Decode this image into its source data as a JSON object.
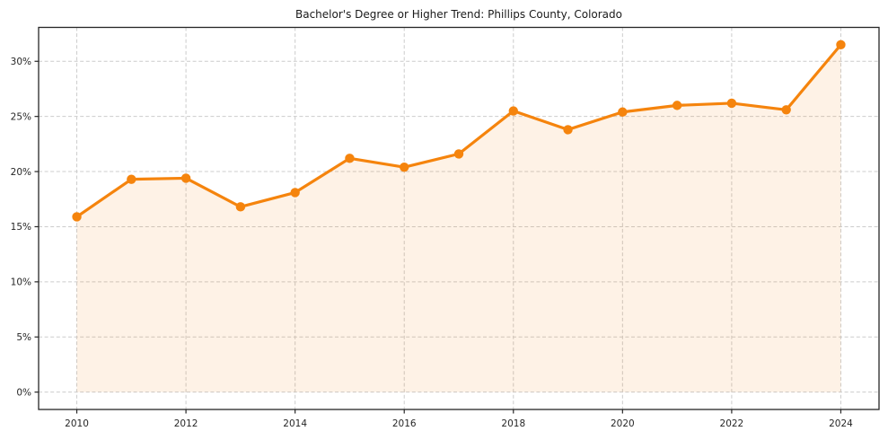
{
  "figure": {
    "title": "Bachelor's Degree or Higher Trend: Phillips County, Colorado"
  },
  "chart_data": {
    "type": "line",
    "title": "Bachelor's Degree or Higher Trend: Phillips County, Colorado",
    "series": [
      {
        "name": "Bachelor's Degree or Higher (%)",
        "x": [
          2010,
          2011,
          2012,
          2013,
          2014,
          2015,
          2016,
          2017,
          2018,
          2019,
          2020,
          2021,
          2022,
          2023,
          2024
        ],
        "values": [
          15.9,
          19.3,
          19.4,
          16.8,
          18.1,
          21.2,
          20.4,
          21.6,
          25.5,
          23.8,
          25.4,
          26.0,
          26.2,
          25.6,
          31.5
        ]
      }
    ],
    "xlabel": "",
    "ylabel": "",
    "xlim": [
      2009.3,
      2024.7
    ],
    "ylim": [
      -1.575,
      33.075
    ],
    "x_ticks": [
      2010,
      2012,
      2014,
      2016,
      2018,
      2020,
      2022,
      2024
    ],
    "y_ticks": [
      0,
      5,
      10,
      15,
      20,
      25,
      30
    ],
    "y_tick_suffix": "%",
    "grid": true,
    "grid_style": "dashed",
    "legend_position": "none",
    "area_fill": true,
    "marker": "circle",
    "colors": {
      "line": "#f5840d",
      "fill": "#f5840d",
      "fill_opacity": 0.1,
      "grid": "#cccccc",
      "spine": "#262626",
      "tick_label": "#262626",
      "title": "#1a1a1a",
      "background": "#ffffff"
    }
  }
}
